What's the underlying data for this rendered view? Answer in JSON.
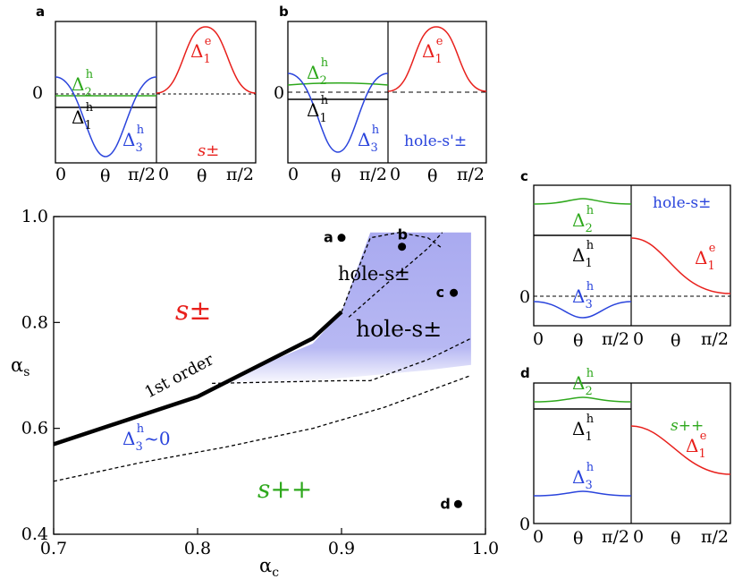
{
  "colors": {
    "red": "#e8201c",
    "green": "#2ea81c",
    "blue": "#2a44dc",
    "black": "#000000",
    "shade": "#a9aaf0"
  },
  "chart_data": {
    "type": "line",
    "title": "",
    "xlabel": "αc",
    "ylabel": "αs",
    "xlim": [
      0.7,
      1.0
    ],
    "ylim": [
      0.4,
      1.0
    ],
    "x_ticks": [
      "0.7",
      "0.8",
      "0.9",
      "1.0"
    ],
    "y_ticks": [
      "0.4",
      "0.6",
      "0.8",
      "1.0"
    ],
    "series": [
      {
        "name": "1st order",
        "style": "thick-solid",
        "x": [
          0.7,
          0.8,
          0.88,
          0.9
        ],
        "y": [
          0.57,
          0.66,
          0.77,
          0.82
        ]
      },
      {
        "name": "Δ3h~0",
        "style": "dashed",
        "x": [
          0.7,
          0.76,
          0.82,
          0.88,
          0.93,
          0.97,
          0.99
        ],
        "y": [
          0.5,
          0.535,
          0.565,
          0.6,
          0.64,
          0.68,
          0.7
        ]
      },
      {
        "name": "hole-s± boundary 1",
        "style": "dashed",
        "x": [
          0.81,
          0.9,
          0.92,
          0.96,
          0.99
        ],
        "y": [
          0.685,
          0.69,
          0.69,
          0.73,
          0.77
        ]
      },
      {
        "name": "hole-s± boundary 2",
        "style": "dashed",
        "x": [
          0.9,
          0.92,
          0.94,
          0.96,
          0.97
        ],
        "y": [
          0.82,
          0.96,
          0.97,
          0.96,
          0.94
        ]
      },
      {
        "name": "hole-s± boundary 3",
        "style": "dashed",
        "x": [
          0.905,
          0.93,
          0.96,
          0.97
        ],
        "y": [
          0.81,
          0.87,
          0.94,
          0.97
        ]
      }
    ],
    "shaded_region_x": [
      0.81,
      0.88,
      0.9,
      0.92,
      0.99,
      0.99,
      0.96,
      0.92,
      0.88
    ],
    "shaded_region_y": [
      0.68,
      0.76,
      0.82,
      0.97,
      0.97,
      0.72,
      0.71,
      0.7,
      0.69
    ],
    "points": [
      {
        "label": "a",
        "x": 0.9,
        "y": 0.96
      },
      {
        "label": "b",
        "x": 0.942,
        "y": 0.943
      },
      {
        "label": "c",
        "x": 0.978,
        "y": 0.856
      },
      {
        "label": "d",
        "x": 0.981,
        "y": 0.457
      }
    ],
    "region_labels": {
      "s_pm": "s±",
      "hole_s_pm_upper": "hole-s±",
      "hole_s_pm_lower": "hole-s±",
      "first_order": "1st order",
      "delta3_zero": "Δ3h~0",
      "s_pp": "s++"
    }
  },
  "panels": {
    "a": {
      "label": "a",
      "zero": "0",
      "x_left": "0",
      "x_mid": "θ",
      "x_right": "π/2",
      "x2_left": "0",
      "x2_mid": "θ",
      "x2_right": "π/2",
      "phase": "s±",
      "d1e": "Δ1e",
      "d1h": "Δ1h",
      "d2h": "Δ2h",
      "d3h": "Δ3h"
    },
    "b": {
      "label": "b",
      "zero": "0",
      "x_left": "0",
      "x_mid": "θ",
      "x_right": "π/2",
      "x2_left": "0",
      "x2_mid": "θ",
      "x2_right": "π/2",
      "phase": "hole-s'±",
      "d1e": "Δ1e",
      "d1h": "Δ1h",
      "d2h": "Δ2h",
      "d3h": "Δ3h"
    },
    "c": {
      "label": "c",
      "zero": "0",
      "x_left": "0",
      "x_mid": "θ",
      "x_right": "π/2",
      "x2_left": "0",
      "x2_mid": "θ",
      "x2_right": "π/2",
      "phase": "hole-s±",
      "d1e": "Δ1e",
      "d1h": "Δ1h",
      "d2h": "Δ2h",
      "d3h": "Δ3h"
    },
    "d": {
      "label": "d",
      "zero": "0",
      "x_left": "0",
      "x_mid": "θ",
      "x_right": "π/2",
      "x2_left": "0",
      "x2_mid": "θ",
      "x2_right": "π/2",
      "phase": "s++",
      "d1e": "Δ1e",
      "d1h": "Δ1h",
      "d2h": "Δ2h",
      "d3h": "Δ3h"
    }
  }
}
